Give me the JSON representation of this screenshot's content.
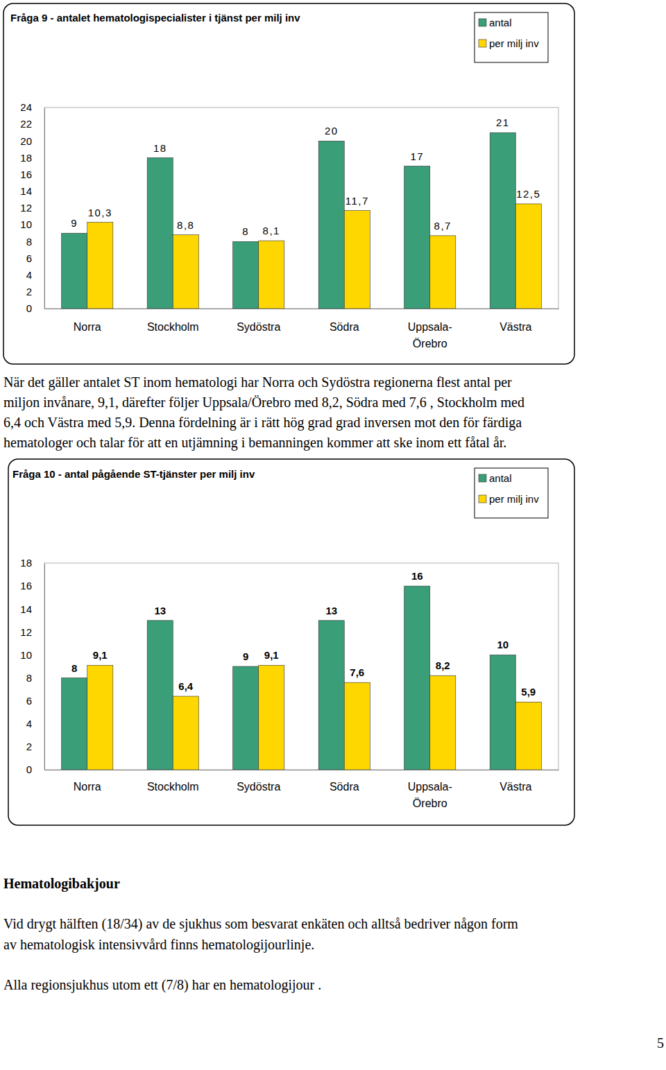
{
  "chart_data": [
    {
      "type": "bar",
      "title": "Fråga 9 - antalet hematologispecialister i tjänst per milj inv",
      "categories": [
        "Norra",
        "Stockholm",
        "Sydöstra",
        "Södra",
        "Uppsala-Örebro",
        "Västra"
      ],
      "series": [
        {
          "name": "antal",
          "color": "#3a9e78",
          "values": [
            9,
            18,
            8,
            20,
            17,
            21
          ]
        },
        {
          "name": "per milj inv",
          "color": "#ffd700",
          "values": [
            10.3,
            8.8,
            8.1,
            11.7,
            8.7,
            12.5
          ],
          "value_labels": [
            "10,3",
            "8,8",
            "8,1",
            "11,7",
            "8,7",
            "12,5"
          ]
        }
      ],
      "ylim": [
        0,
        24
      ],
      "yticks": [
        0,
        2,
        4,
        6,
        8,
        10,
        12,
        14,
        16,
        18,
        20,
        22,
        24
      ],
      "grid": false,
      "legend": "top-right",
      "data_labels": true
    },
    {
      "type": "bar",
      "title": "Fråga 10 - antal pågående ST-tjänster per milj inv",
      "categories": [
        "Norra",
        "Stockholm",
        "Sydöstra",
        "Södra",
        "Uppsala-Örebro",
        "Västra"
      ],
      "series": [
        {
          "name": "antal",
          "color": "#3a9e78",
          "values": [
            8,
            13,
            9,
            13,
            16,
            10
          ]
        },
        {
          "name": "per milj inv",
          "color": "#ffd700",
          "values": [
            9.1,
            6.4,
            9.1,
            7.6,
            8.2,
            5.9
          ],
          "value_labels": [
            "9,1",
            "6,4",
            "9,1",
            "7,6",
            "8,2",
            "5,9"
          ]
        }
      ],
      "ylim": [
        0,
        18
      ],
      "yticks": [
        0,
        2,
        4,
        6,
        8,
        10,
        12,
        14,
        16,
        18
      ],
      "grid": false,
      "legend": "top-right",
      "data_labels": true
    }
  ],
  "document": {
    "paragraph_1": [
      "När det gäller antalet ST inom hematologi har Norra och Sydöstra regionerna flest antal per",
      "miljon invånare, 9,1, därefter följer Uppsala/Örebro med 8,2, Södra med 7,6 , Stockholm med",
      "6,4 och Västra med 5,9. Denna fördelning är i rätt hög grad grad inversen mot den för färdiga",
      "hematologer och talar för att en utjämning i bemanningen kommer att ske inom ett fåtal år."
    ],
    "heading": "Hematologibakjour",
    "paragraph_2": [
      "Vid drygt hälften (18/34) av de sjukhus som besvarat enkäten och alltså bedriver någon form",
      "av hematologisk intensivvård finns hematologijourlinje."
    ],
    "paragraph_3": [
      "Alla regionsjukhus utom ett (7/8) har en hematologijour ."
    ],
    "page_number": "5"
  }
}
